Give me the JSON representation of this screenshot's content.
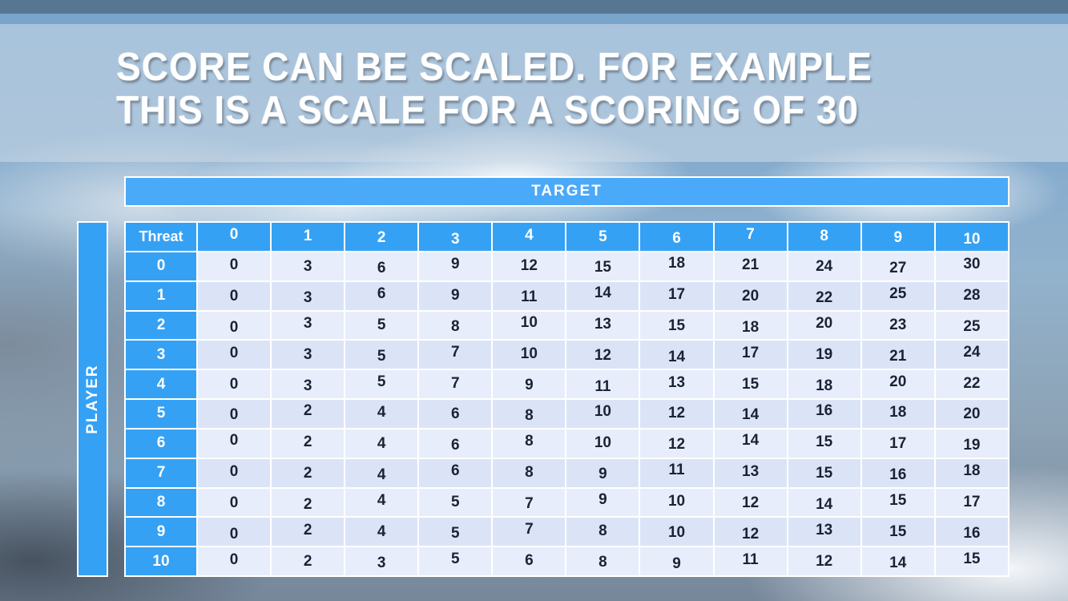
{
  "slide": {
    "title_line1": "SCORE CAN BE SCALED. FOR EXAMPLE",
    "title_line2": "THIS IS A SCALE FOR A SCORING OF 30"
  },
  "chart_data": {
    "type": "table",
    "title": "SCORE CAN BE SCALED. FOR EXAMPLE THIS IS A SCALE FOR A SCORING OF 30",
    "column_axis_label": "TARGET",
    "row_axis_label": "PLAYER",
    "corner_header": "Threat",
    "columns": [
      "0",
      "1",
      "2",
      "3",
      "4",
      "5",
      "6",
      "7",
      "8",
      "9",
      "10"
    ],
    "row_headers": [
      "0",
      "1",
      "2",
      "3",
      "4",
      "5",
      "6",
      "7",
      "8",
      "9",
      "10"
    ],
    "rows": [
      [
        0,
        3,
        6,
        9,
        12,
        15,
        18,
        21,
        24,
        27,
        30
      ],
      [
        0,
        3,
        6,
        9,
        11,
        14,
        17,
        20,
        22,
        25,
        28
      ],
      [
        0,
        3,
        5,
        8,
        10,
        13,
        15,
        18,
        20,
        23,
        25
      ],
      [
        0,
        3,
        5,
        7,
        10,
        12,
        14,
        17,
        19,
        21,
        24
      ],
      [
        0,
        3,
        5,
        7,
        9,
        11,
        13,
        15,
        18,
        20,
        22
      ],
      [
        0,
        2,
        4,
        6,
        8,
        10,
        12,
        14,
        16,
        18,
        20
      ],
      [
        0,
        2,
        4,
        6,
        8,
        10,
        12,
        14,
        15,
        17,
        19
      ],
      [
        0,
        2,
        4,
        6,
        8,
        9,
        11,
        13,
        15,
        16,
        18
      ],
      [
        0,
        2,
        4,
        5,
        7,
        9,
        10,
        12,
        14,
        15,
        17
      ],
      [
        0,
        2,
        4,
        5,
        7,
        8,
        10,
        12,
        13,
        15,
        16
      ],
      [
        0,
        2,
        3,
        5,
        6,
        8,
        9,
        11,
        12,
        14,
        15
      ]
    ]
  },
  "colors": {
    "accent-blue": "#35a1f4",
    "target-bar-blue": "#4aa9f8",
    "row-light": "#e8edfb",
    "row-dark": "#dbe4f7",
    "cell-text": "#1a2335",
    "top-strip": "#567691"
  }
}
